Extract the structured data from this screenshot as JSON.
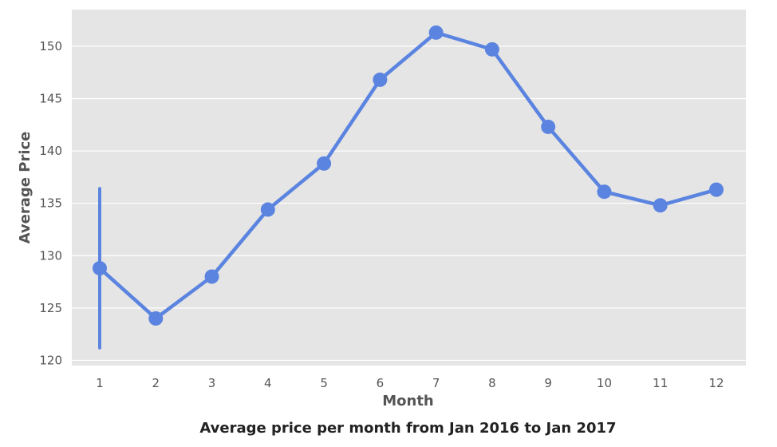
{
  "colors": {
    "plot_background": "#e5e5e5",
    "grid": "#ffffff",
    "series": "#5b84e0",
    "text": "#555555",
    "title": "#222222"
  },
  "chart_data": {
    "type": "line",
    "title": "Average price per month from Jan 2016 to Jan 2017",
    "xlabel": "Month",
    "ylabel": "Average Price",
    "categories": [
      "1",
      "2",
      "3",
      "4",
      "5",
      "6",
      "7",
      "8",
      "9",
      "10",
      "11",
      "12"
    ],
    "series": [
      {
        "values": [
          128.8,
          124.0,
          128.0,
          134.4,
          138.8,
          146.8,
          151.3,
          149.7,
          142.3,
          136.1,
          134.8,
          136.3
        ],
        "error_bars": [
          [
            121.2,
            136.4
          ],
          null,
          null,
          null,
          null,
          null,
          null,
          null,
          null,
          null,
          null,
          null
        ]
      }
    ],
    "ylim": [
      119.5,
      153.5
    ],
    "yticks": [
      120,
      125,
      130,
      135,
      140,
      145,
      150
    ],
    "grid": "horizontal",
    "markers": true
  }
}
